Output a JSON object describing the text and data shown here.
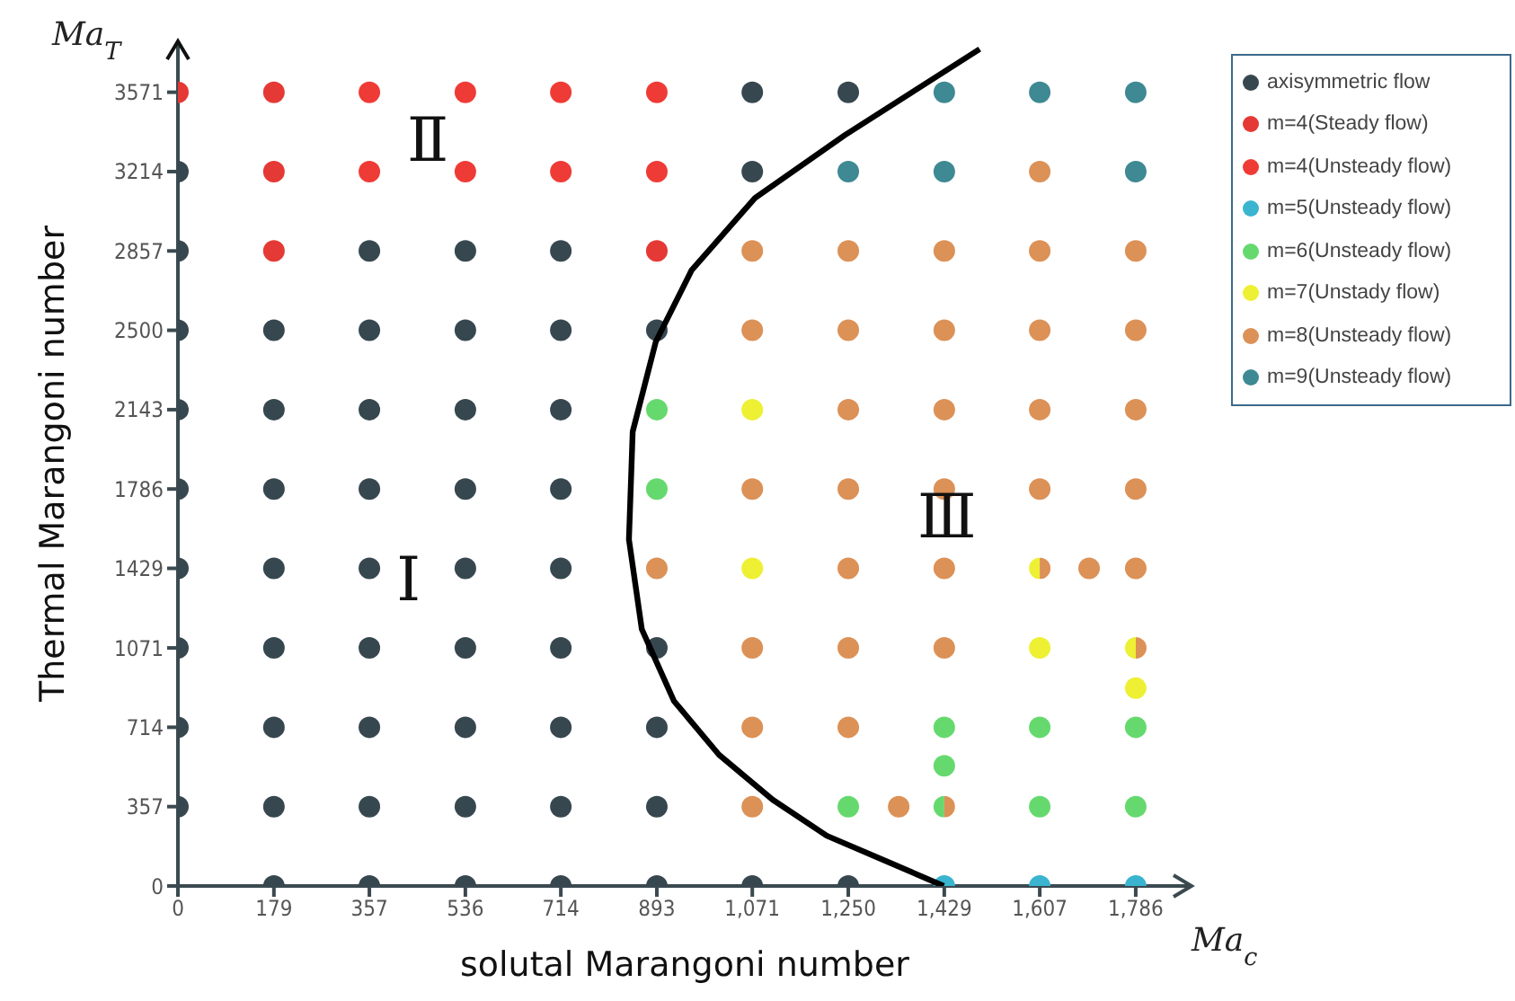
{
  "chart_data": {
    "type": "scatter",
    "xlabel": "solutal Marangoni number",
    "ylabel": "Thermal Marangoni number",
    "annotations": [
      "Ma$_{T}$",
      "Ma$_{c}$",
      "Ⅰ",
      "Ⅱ",
      "Ⅲ"
    ],
    "xlim": [
      0,
      1890
    ],
    "ylim": [
      0,
      3800
    ],
    "xticks": [
      0,
      179,
      357,
      536,
      714,
      893,
      {
        "value": 1071,
        "label": "1,071"
      },
      {
        "value": 1250,
        "label": "1,250"
      },
      {
        "value": 1429,
        "label": "1,429"
      },
      {
        "value": 1607,
        "label": "1,607"
      },
      {
        "value": 1786,
        "label": "1,786"
      }
    ],
    "yticks": [
      0,
      357,
      714,
      1071,
      1429,
      1786,
      2143,
      2500,
      2857,
      3214,
      3571
    ],
    "grid": false,
    "legend": "right",
    "series": [
      {
        "name": "axisymmetric flow",
        "color": "#37474f",
        "x": [
          1071,
          1250,
          0,
          1071,
          0,
          357,
          536,
          714,
          0,
          179,
          357,
          536,
          714,
          893,
          0,
          179,
          357,
          536,
          714,
          0,
          179,
          357,
          536,
          714,
          0,
          179,
          357,
          536,
          714,
          0,
          179,
          357,
          536,
          714,
          893,
          0,
          179,
          357,
          536,
          714,
          893,
          0,
          179,
          357,
          536,
          714,
          893,
          179,
          357,
          536,
          714,
          893,
          1071,
          1250
        ],
        "values": [
          3571,
          3571,
          3214,
          3214,
          2857,
          2857,
          2857,
          2857,
          2500,
          2500,
          2500,
          2500,
          2500,
          2500,
          2143,
          2143,
          2143,
          2143,
          2143,
          1786,
          1786,
          1786,
          1786,
          1786,
          1429,
          1429,
          1429,
          1429,
          1429,
          1071,
          1071,
          1071,
          1071,
          1071,
          1071,
          714,
          714,
          714,
          714,
          714,
          714,
          357,
          357,
          357,
          357,
          357,
          357,
          0,
          0,
          0,
          0,
          0,
          0,
          0
        ]
      },
      {
        "name": "m=4(Steady flow)",
        "color": "#e53935",
        "x": [
          0,
          179,
          179,
          179,
          893
        ],
        "values": [
          3571,
          3571,
          3214,
          2857,
          2857
        ]
      },
      {
        "name": "m=4(Unsteady flow)",
        "color": "#ef3b36",
        "x": [
          357,
          536,
          714,
          893,
          357,
          536,
          714,
          893
        ],
        "values": [
          3571,
          3571,
          3571,
          3571,
          3214,
          3214,
          3214,
          3214
        ]
      },
      {
        "name": "m=5(Unsteady flow)",
        "color": "#3ab4cf",
        "x": [
          1429,
          1607,
          1786
        ],
        "values": [
          0,
          0,
          0
        ]
      },
      {
        "name": "m=6(Unsteady flow)",
        "color": "#66d96e",
        "x": [
          893,
          893,
          1429,
          1607,
          1786,
          1429,
          1250,
          1429,
          1607,
          1786
        ],
        "values": [
          2143,
          1786,
          714,
          714,
          714,
          541,
          357,
          357,
          357,
          357
        ]
      },
      {
        "name": "m=7(Unstady flow)",
        "color": "#eef033",
        "x": [
          1071,
          1071,
          1607,
          1607,
          1786,
          1786
        ],
        "values": [
          2143,
          1429,
          1429,
          1071,
          1071,
          890
        ]
      },
      {
        "name": "m=8(Unsteady flow)",
        "color": "#dc9157",
        "x": [
          1607,
          1071,
          1250,
          1429,
          1607,
          1786,
          1071,
          1250,
          1429,
          1607,
          1786,
          1250,
          1429,
          1607,
          1786,
          1071,
          1250,
          1429,
          1607,
          1786,
          893,
          1250,
          1429,
          1607,
          1699,
          1786,
          1071,
          1250,
          1429,
          1786,
          1071,
          1250,
          1071,
          1344,
          1429
        ],
        "values": [
          3214,
          2857,
          2857,
          2857,
          2857,
          2857,
          2500,
          2500,
          2500,
          2500,
          2500,
          2143,
          2143,
          2143,
          2143,
          1786,
          1786,
          1786,
          1786,
          1786,
          1429,
          1429,
          1429,
          1429,
          1429,
          1429,
          1071,
          1071,
          1071,
          1071,
          714,
          714,
          357,
          357,
          357
        ]
      },
      {
        "name": "m=9(Unsteady flow)",
        "color": "#3e8993",
        "x": [
          1429,
          1607,
          1786,
          1250,
          1429,
          1786
        ],
        "values": [
          3571,
          3571,
          3571,
          3214,
          3214,
          3214
        ]
      },
      {
        "type": "line",
        "color": "#000000",
        "x": [
          1495,
          1243,
          1076,
          958,
          891,
          848,
          841,
          865,
          925,
          1009,
          1109,
          1210,
          1327,
          1428
        ],
        "values": [
          3765,
          3377,
          3095,
          2771,
          2448,
          2044,
          1559,
          1155,
          832,
          590,
          388,
          226,
          105,
          0
        ]
      }
    ]
  }
}
